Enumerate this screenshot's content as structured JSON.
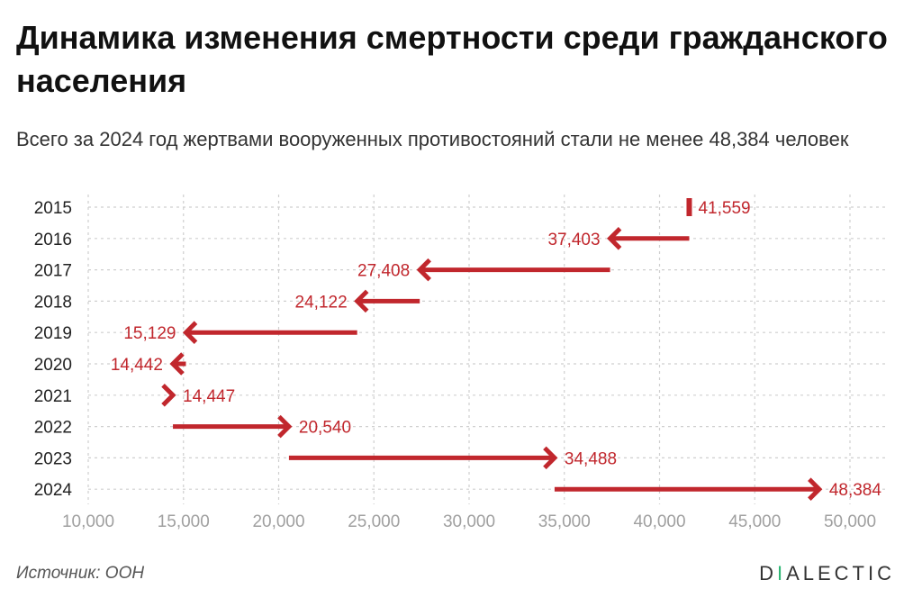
{
  "header": {
    "title": "Динамика изменения смертности среди гражданского населения",
    "subtitle": "Всего за 2024 год жертвами вооруженных противостояний стали не менее 48,384 человек"
  },
  "footer": {
    "source": "Источник: ООН",
    "brand_first": "D",
    "brand_accent": "I",
    "brand_rest": "ALECTIC"
  },
  "colors": {
    "arrow": "#c1272d",
    "grid": "#cfcfcf",
    "brand_accent": "#2bb673"
  },
  "chart_data": {
    "type": "arrow",
    "title": "Динамика изменения смертности среди гражданского населения",
    "subtitle": "Всего за 2024 год жертвами вооруженных противостояний стали не менее 48,384 человек",
    "xlim": [
      10000,
      50000
    ],
    "x_ticks": [
      10000,
      15000,
      20000,
      25000,
      30000,
      35000,
      40000,
      45000,
      50000
    ],
    "x_tick_labels": [
      "10,000",
      "15,000",
      "20,000",
      "25,000",
      "30,000",
      "35,000",
      "40,000",
      "45,000",
      "50,000"
    ],
    "grid": "vertical dashed",
    "categories": [
      "2015",
      "2016",
      "2017",
      "2018",
      "2019",
      "2020",
      "2021",
      "2022",
      "2023",
      "2024"
    ],
    "values": [
      41559,
      37403,
      27408,
      24122,
      15129,
      14442,
      14447,
      20540,
      34488,
      48384
    ],
    "labels": [
      "41,559",
      "37,403",
      "27,408",
      "24,122",
      "15,129",
      "14,442",
      "14,447",
      "20,540",
      "34,488",
      "48,384"
    ]
  }
}
